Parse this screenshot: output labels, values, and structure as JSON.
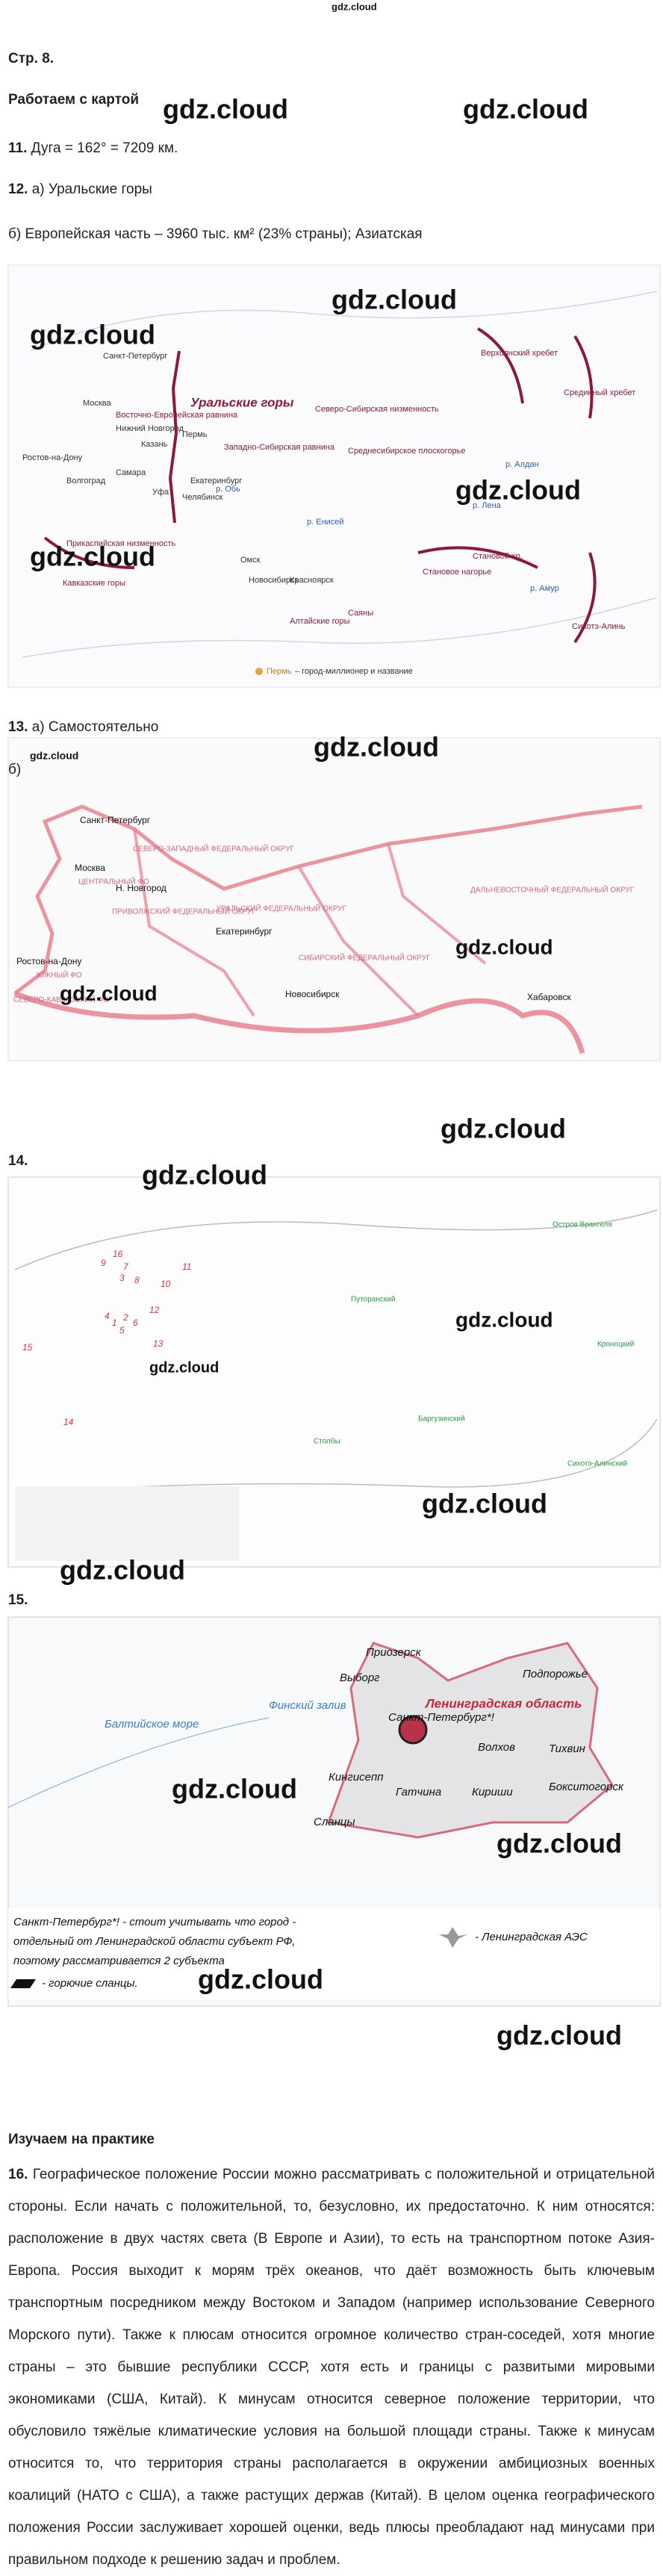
{
  "header": {
    "logo": "gdz.cloud",
    "page": "Стр. 8.",
    "section": "Работаем с картой"
  },
  "task11": {
    "number": "11.",
    "text": "Дуга = 162° = 7209 км."
  },
  "task12": {
    "number": "12.",
    "a": "а) Уральские горы",
    "b": "б) Европейская часть – 3960 тыс. км² (23% страны); Азиатская"
  },
  "map1": {
    "labels": [
      "Санкт-Петербург",
      "Москва",
      "Восточно-Европейская равнина",
      "Уральские горы",
      "Нижний Новгород",
      "Казань",
      "Пермь",
      "Екатеринбург",
      "Челябинск",
      "Уфа",
      "Самара",
      "Волгоград",
      "Ростов-на-Дону",
      "Прикаспийская низменность",
      "Кавказские горы",
      "Западно-Сибирская равнина",
      "Северо-Сибирская низменность",
      "Среднесибирское плоскогорье",
      "Омск",
      "Новосибирск",
      "Красноярск",
      "Алтайские горы",
      "Саяны",
      "Становое нагорье",
      "Становой хр.",
      "Верхоянский хребет",
      "Срединный хребет",
      "Сихотэ-Алинь",
      "р. Лена",
      "р. Обь",
      "р. Енисей",
      "р. Амур",
      "р. Алдан"
    ],
    "legend_city": "Пермь",
    "legend_text": "– город-миллионер и название"
  },
  "task13": {
    "number": "13.",
    "a": "а) Самостоятельно",
    "b": "б)"
  },
  "map2": {
    "labels": [
      "СЕВЕРО-ЗАПАДНЫЙ ФЕДЕРАЛЬНЫЙ ОКРУГ",
      "Санкт-Петербург",
      "Москва",
      "ЦЕНТРАЛЬНЫЙ ФО",
      "Н. Новгород",
      "ПРИВОЛЖСКИЙ ФЕДЕРАЛЬНЫЙ ОКРУГ",
      "УРАЛЬСКИЙ ФЕДЕРАЛЬНЫЙ ОКРУГ",
      "Екатеринбург",
      "СИБИРСКИЙ ФЕДЕРАЛЬНЫЙ ОКРУГ",
      "Новосибирск",
      "ДАЛЬНЕВОСТОЧНЫЙ ФЕДЕРАЛЬНЫЙ ОКРУГ",
      "Хабаровск",
      "Ростов-на-Дону",
      "ЮЖНЫЙ ФО",
      "СЕВЕРО-КАВКАЗСКИЙ ФО"
    ]
  },
  "task14": {
    "number": "14."
  },
  "map3": {
    "numbers": [
      "16",
      "9",
      "7",
      "3",
      "8",
      "11",
      "10",
      "4",
      "1",
      "2",
      "6",
      "12",
      "5",
      "13",
      "15",
      "14"
    ],
    "reserves": [
      "Путоранский",
      "Кроноцкий",
      "Баргузинский",
      "Столбы",
      "Сихотэ-Алинский",
      "Остров Врангеля"
    ]
  },
  "task15": {
    "number": "15."
  },
  "map4": {
    "labels": [
      "Приозерск",
      "Выборг",
      "Ленинградская область",
      "Санкт-Петербург*!",
      "Подпорожье",
      "Волхов",
      "Тихвин",
      "Кингисепп",
      "Гатчина",
      "Кириши",
      "Бокситогорск",
      "Сланцы",
      "Финский залив",
      "Балтийское море"
    ],
    "caption": [
      "Санкт-Петербург*! - стоит учитывать что город -",
      "отдельный от Ленинградской области субъект РФ,",
      "поэтому рассматривается 2 субъекта",
      "- горючие сланцы."
    ],
    "aes": "- Ленинградская АЭС"
  },
  "practice": {
    "title": "Изучаем на практике",
    "number": "16.",
    "text": "Географическое положение России можно рассматривать с положительной и отрицательной стороны. Если начать с положительной, то, безусловно, их предостаточно. К ним относятся: расположение в двух частях света (В Европе и Азии), то есть на транспортном потоке Азия-Европа. Россия выходит к морям трёх океанов, что даёт возможность быть ключевым транспортным посредником между Востоком и Западом (например использование Северного Морского пути). Также к плюсам относится огромное количество стран-соседей, хотя многие страны – это бывшие республики СССР, хотя есть и границы с развитыми мировыми экономиками (США, Китай). К минусам относится северное положение территории, что обусловило тяжёлые климатические условия на большой площади страны. Также к минусам относится то, что территория страны располагается в окружении амбициозных военных коалиций (НАТО с США), а также растущих держав (Китай). В целом оценка географического положения России заслуживает хорошей оценки, ведь плюсы преобладают над минусами при правильном подходе к решению задач и проблем."
  },
  "watermarks": [
    "gdz.cloud",
    "gdz.cloud",
    "gdz.cloud",
    "gdz.cloud",
    "gdz.cloud",
    "gdz.cloud",
    "gdz.cloud",
    "gdz.cloud",
    "gdz.cloud",
    "gdz.cloud",
    "gdz.cloud",
    "gdz.cloud",
    "gdz.cloud",
    "gdz.cloud",
    "gdz.cloud",
    "gdz.cloud",
    "gdz.cloud",
    "gdz.cloud",
    "gdz.cloud",
    "gdz.cloud",
    "gdz.cloud"
  ]
}
